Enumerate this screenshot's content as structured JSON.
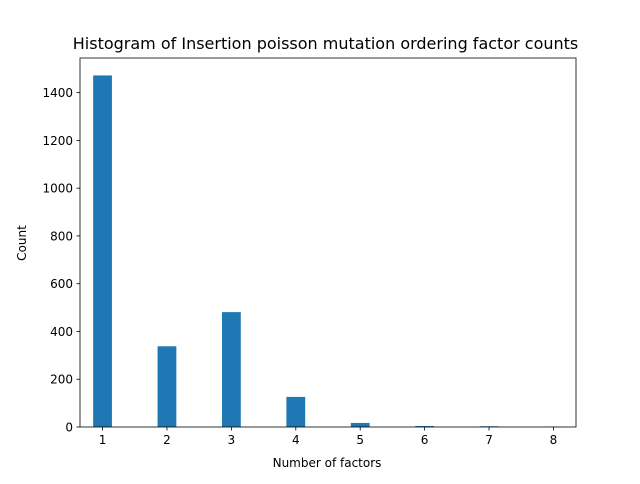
{
  "chart_data": {
    "type": "bar",
    "title": "Histogram of Insertion poisson mutation ordering factor counts",
    "xlabel": "Number of factors",
    "ylabel": "Count",
    "xlim": [
      0.65,
      8.35
    ],
    "ylim": [
      0,
      1545
    ],
    "xticks": [
      1,
      2,
      3,
      4,
      5,
      6,
      7,
      8
    ],
    "yticks": [
      0,
      200,
      400,
      600,
      800,
      1000,
      1200,
      1400
    ],
    "bin_width": 0.29167,
    "x": [
      1,
      2,
      3,
      4,
      5,
      6,
      7,
      8
    ],
    "values": [
      1472,
      338,
      481,
      126,
      17,
      4,
      3,
      1
    ],
    "color": "#1f77b4",
    "grid": false,
    "legend": "none"
  }
}
